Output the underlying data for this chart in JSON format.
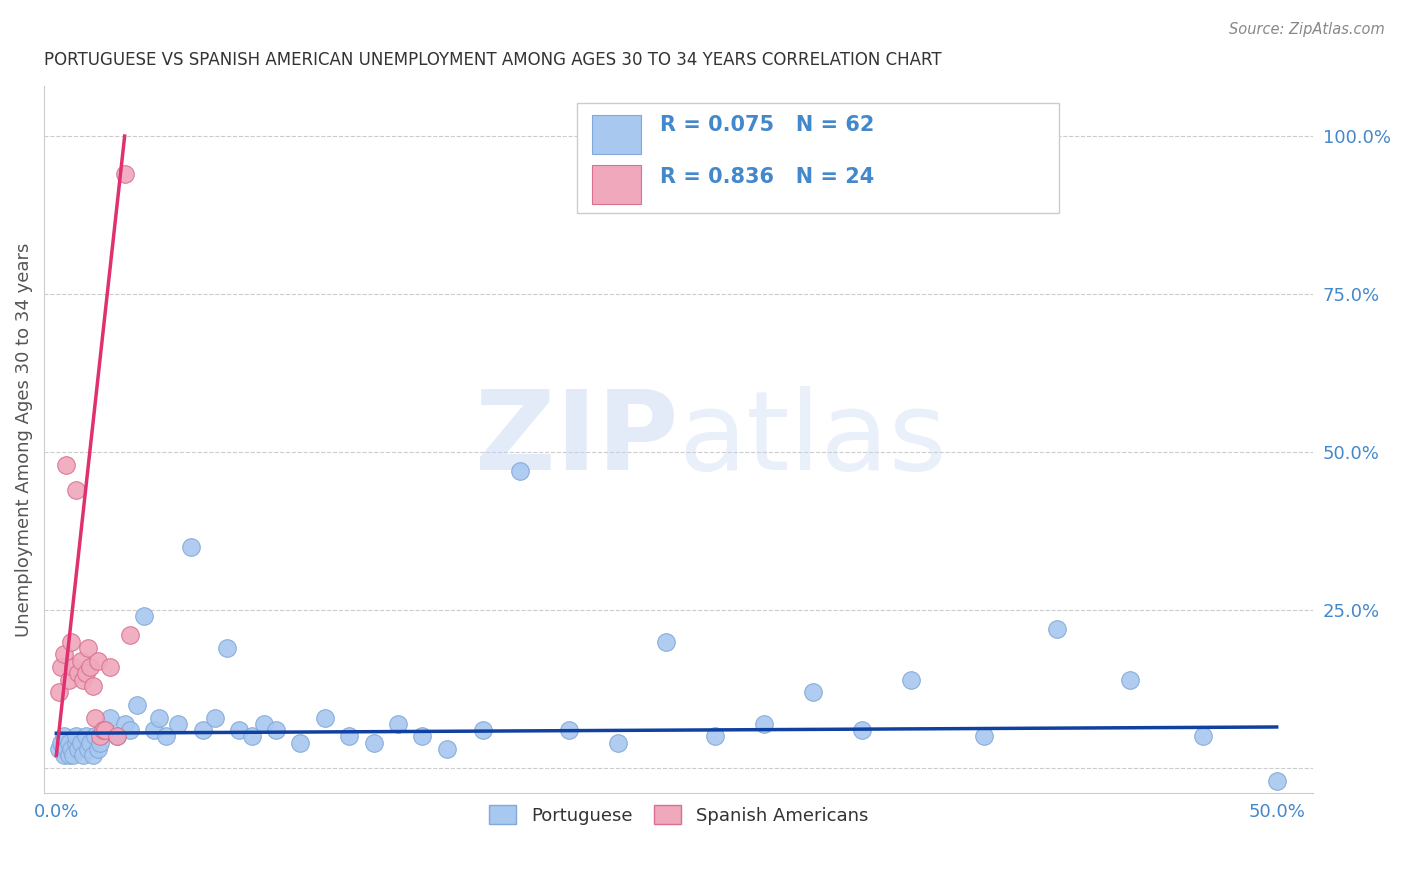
{
  "title": "PORTUGUESE VS SPANISH AMERICAN UNEMPLOYMENT AMONG AGES 30 TO 34 YEARS CORRELATION CHART",
  "source": "Source: ZipAtlas.com",
  "ylabel": "Unemployment Among Ages 30 to 34 years",
  "xlim": [
    -0.005,
    0.515
  ],
  "ylim": [
    -0.04,
    1.08
  ],
  "yticks_right": [
    0.0,
    0.25,
    0.5,
    0.75,
    1.0
  ],
  "yticklabels_right": [
    "",
    "25.0%",
    "50.0%",
    "75.0%",
    "100.0%"
  ],
  "portuguese_color": "#a8c8f0",
  "spanish_color": "#f0a8bc",
  "portuguese_edge": "#80a8d8",
  "spanish_edge": "#d87090",
  "line_blue": "#1040a0",
  "line_pink": "#e03070",
  "legend_text_color": "#4488cc",
  "R_portuguese": 0.075,
  "N_portuguese": 62,
  "R_spanish": 0.836,
  "N_spanish": 24,
  "watermark_zip": "ZIP",
  "watermark_atlas": "atlas",
  "portuguese_x": [
    0.001,
    0.002,
    0.003,
    0.003,
    0.004,
    0.005,
    0.005,
    0.006,
    0.007,
    0.008,
    0.008,
    0.009,
    0.01,
    0.011,
    0.012,
    0.013,
    0.014,
    0.015,
    0.016,
    0.017,
    0.018,
    0.02,
    0.022,
    0.025,
    0.028,
    0.03,
    0.033,
    0.036,
    0.04,
    0.042,
    0.045,
    0.05,
    0.055,
    0.06,
    0.065,
    0.07,
    0.075,
    0.08,
    0.085,
    0.09,
    0.1,
    0.11,
    0.12,
    0.13,
    0.14,
    0.15,
    0.16,
    0.175,
    0.19,
    0.21,
    0.23,
    0.25,
    0.27,
    0.29,
    0.31,
    0.33,
    0.35,
    0.38,
    0.41,
    0.44,
    0.47,
    0.5
  ],
  "portuguese_y": [
    0.03,
    0.04,
    0.02,
    0.05,
    0.03,
    0.02,
    0.04,
    0.03,
    0.02,
    0.04,
    0.05,
    0.03,
    0.04,
    0.02,
    0.05,
    0.03,
    0.04,
    0.02,
    0.05,
    0.03,
    0.04,
    0.06,
    0.08,
    0.05,
    0.07,
    0.06,
    0.1,
    0.24,
    0.06,
    0.08,
    0.05,
    0.07,
    0.35,
    0.06,
    0.08,
    0.19,
    0.06,
    0.05,
    0.07,
    0.06,
    0.04,
    0.08,
    0.05,
    0.04,
    0.07,
    0.05,
    0.03,
    0.06,
    0.47,
    0.06,
    0.04,
    0.2,
    0.05,
    0.07,
    0.12,
    0.06,
    0.14,
    0.05,
    0.22,
    0.14,
    0.05,
    -0.02
  ],
  "spanish_x": [
    0.001,
    0.002,
    0.003,
    0.004,
    0.005,
    0.006,
    0.007,
    0.008,
    0.009,
    0.01,
    0.011,
    0.012,
    0.013,
    0.014,
    0.015,
    0.016,
    0.017,
    0.018,
    0.019,
    0.02,
    0.022,
    0.025,
    0.028,
    0.03
  ],
  "spanish_y": [
    0.12,
    0.16,
    0.18,
    0.48,
    0.14,
    0.2,
    0.16,
    0.44,
    0.15,
    0.17,
    0.14,
    0.15,
    0.19,
    0.16,
    0.13,
    0.08,
    0.17,
    0.05,
    0.06,
    0.06,
    0.16,
    0.05,
    0.94,
    0.21
  ],
  "port_line_x": [
    0.0,
    0.5
  ],
  "port_line_y": [
    0.055,
    0.065
  ],
  "span_line_x": [
    0.0,
    0.028
  ],
  "span_line_y": [
    0.02,
    1.0
  ]
}
